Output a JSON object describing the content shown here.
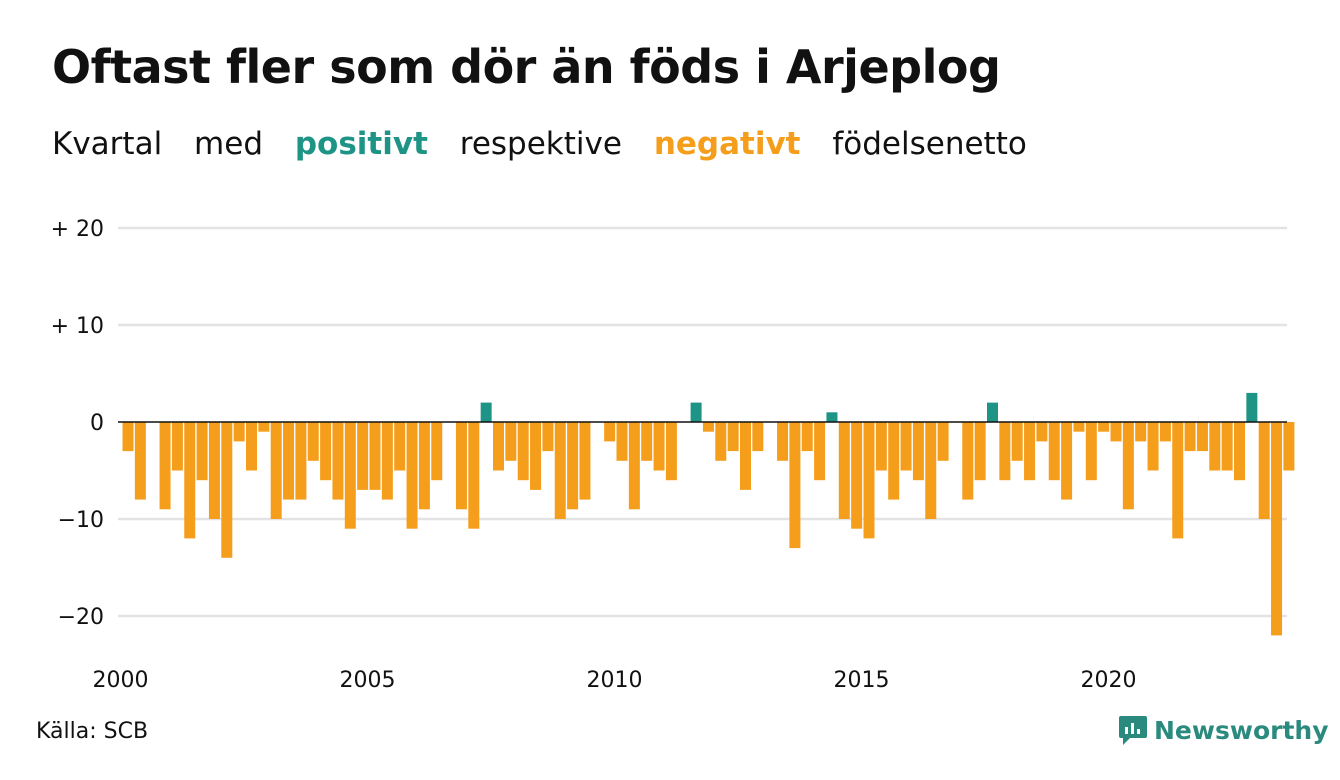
{
  "title": "Oftast fler som dör än föds i Arjeplog",
  "subtitle": {
    "w1": "Kvartal",
    "w2": "med",
    "positive": "positivt",
    "w3": "respektive",
    "negative": "negativt",
    "w4": "födelsenetto"
  },
  "source": "Källa: SCB",
  "logo_text": "Newsworthy",
  "colors": {
    "positive": "#1e9486",
    "negative": "#f59e1b",
    "grid": "#e3e3e3"
  },
  "chart_data": {
    "type": "bar",
    "ylim": [
      -24,
      21
    ],
    "yticks": [
      {
        "value": 20,
        "label": "+ 20"
      },
      {
        "value": 10,
        "label": "+ 10"
      },
      {
        "value": 0,
        "label": "0"
      },
      {
        "value": -10,
        "label": "−10"
      },
      {
        "value": -20,
        "label": "−20"
      }
    ],
    "xticks": [
      "2000",
      "2005",
      "2010",
      "2015",
      "2020"
    ],
    "first_year": 2000,
    "values": [
      -3,
      -8,
      0,
      -9,
      -5,
      -12,
      -6,
      -10,
      -14,
      -2,
      -5,
      -1,
      -10,
      -8,
      -8,
      -4,
      -6,
      -8,
      -11,
      -7,
      -7,
      -8,
      -5,
      -11,
      -9,
      -6,
      0,
      -9,
      -11,
      2,
      -5,
      -4,
      -6,
      -7,
      -3,
      -10,
      -9,
      -8,
      0,
      -2,
      -4,
      -9,
      -4,
      -5,
      -6,
      0,
      2,
      -1,
      -4,
      -3,
      -7,
      -3,
      0,
      -4,
      -13,
      -3,
      -6,
      1,
      -10,
      -11,
      -12,
      -5,
      -8,
      -5,
      -6,
      -10,
      -4,
      0,
      -8,
      -6,
      2,
      -6,
      -4,
      -6,
      -2,
      -6,
      -8,
      -1,
      -6,
      -1,
      -2,
      -9,
      -2,
      -5,
      -2,
      -12,
      -3,
      -3,
      -5,
      -5,
      -6,
      3,
      -10,
      -22,
      -5
    ]
  }
}
